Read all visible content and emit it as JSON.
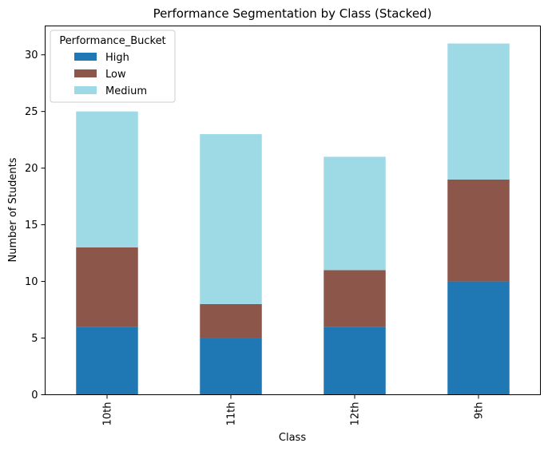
{
  "chart_data": {
    "type": "bar",
    "stacked": true,
    "title": "Performance Segmentation by Class (Stacked)",
    "xlabel": "Class",
    "ylabel": "Number of Students",
    "categories": [
      "10th",
      "11th",
      "12th",
      "9th"
    ],
    "series": [
      {
        "name": "High",
        "values": [
          6,
          5,
          6,
          10
        ],
        "color": "#1f77b4"
      },
      {
        "name": "Low",
        "values": [
          7,
          3,
          5,
          9
        ],
        "color": "#8c564b"
      },
      {
        "name": "Medium",
        "values": [
          12,
          15,
          10,
          12
        ],
        "color": "#9edae5"
      }
    ],
    "ylim": [
      0,
      32.55
    ],
    "yticks": [
      0,
      5,
      10,
      15,
      20,
      25,
      30
    ],
    "grid": false,
    "legend": {
      "title": "Performance_Bucket",
      "position": "top-left"
    }
  }
}
